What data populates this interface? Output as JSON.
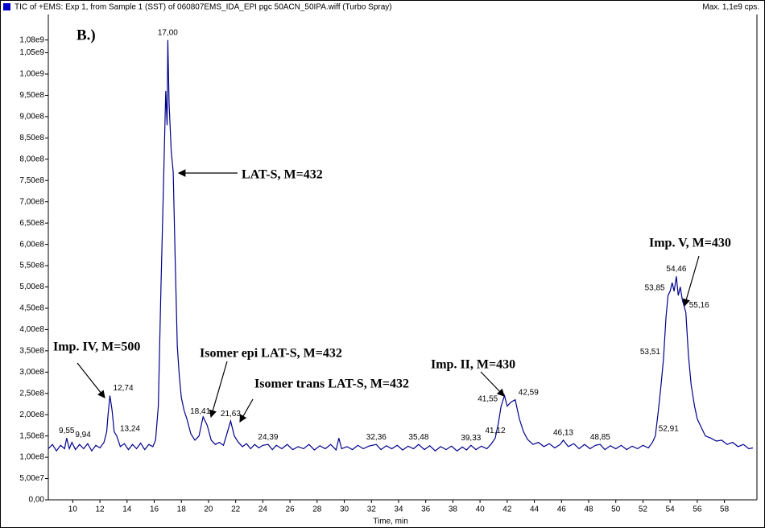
{
  "chart_data": {
    "type": "line",
    "title": "TIC of +EMS: Exp 1, from Sample 1 (SST) of 060807EMS_IDA_EPI pgc 50ACN_50IPA.wiff (Turbo Spray)",
    "max_label": "Max. 1,1e9 cps.",
    "panel_label": "B.)",
    "x_label": "Time, min",
    "xlim": [
      8.2,
      60.1
    ],
    "ylim": [
      0,
      1080000000
    ],
    "xticks": [
      10,
      12,
      14,
      16,
      18,
      20,
      22,
      24,
      26,
      28,
      30,
      32,
      34,
      36,
      38,
      40,
      42,
      44,
      46,
      48,
      50,
      52,
      54,
      56,
      58
    ],
    "yticks": [
      {
        "value": 0,
        "label": "0,00"
      },
      {
        "value": 50000000,
        "label": "5,00e7"
      },
      {
        "value": 100000000,
        "label": "1,00e8"
      },
      {
        "value": 150000000,
        "label": "1,50e8"
      },
      {
        "value": 200000000,
        "label": "2,00e8"
      },
      {
        "value": 250000000,
        "label": "2,50e8"
      },
      {
        "value": 300000000,
        "label": "3,00e8"
      },
      {
        "value": 350000000,
        "label": "3,50e8"
      },
      {
        "value": 400000000,
        "label": "4,00e8"
      },
      {
        "value": 450000000,
        "label": "4,50e8"
      },
      {
        "value": 500000000,
        "label": "5,00e8"
      },
      {
        "value": 550000000,
        "label": "5,50e8"
      },
      {
        "value": 600000000,
        "label": "6,00e8"
      },
      {
        "value": 650000000,
        "label": "6,50e8"
      },
      {
        "value": 700000000,
        "label": "7,00e8"
      },
      {
        "value": 750000000,
        "label": "7,50e8"
      },
      {
        "value": 800000000,
        "label": "8,00e8"
      },
      {
        "value": 850000000,
        "label": "8,50e8"
      },
      {
        "value": 900000000,
        "label": "9,00e8"
      },
      {
        "value": 950000000,
        "label": "9,50e8"
      },
      {
        "value": 1000000000,
        "label": "1,00e9"
      },
      {
        "value": 1050000000,
        "label": "1,05e9"
      },
      {
        "value": 1080000000,
        "label": "1,08e9"
      }
    ],
    "x": [
      8.2,
      8.5,
      8.8,
      9.1,
      9.4,
      9.55,
      9.75,
      9.94,
      10.2,
      10.5,
      10.8,
      11.1,
      11.4,
      11.7,
      12.0,
      12.3,
      12.5,
      12.6,
      12.74,
      12.9,
      13.05,
      13.24,
      13.5,
      13.8,
      14.1,
      14.4,
      14.7,
      15.0,
      15.3,
      15.6,
      15.9,
      16.1,
      16.3,
      16.5,
      16.7,
      16.85,
      16.95,
      17.0,
      17.1,
      17.25,
      17.4,
      17.55,
      17.7,
      17.85,
      18.0,
      18.2,
      18.41,
      18.7,
      19.0,
      19.3,
      19.6,
      19.9,
      20.2,
      20.5,
      20.8,
      21.1,
      21.4,
      21.63,
      21.9,
      22.2,
      22.5,
      22.8,
      23.1,
      23.4,
      23.7,
      24.0,
      24.39,
      24.7,
      25.0,
      25.4,
      25.8,
      26.2,
      26.6,
      27.0,
      27.4,
      27.8,
      28.2,
      28.6,
      29.0,
      29.4,
      29.6,
      29.8,
      30.2,
      30.6,
      31.0,
      31.4,
      31.8,
      32.36,
      32.7,
      33.1,
      33.5,
      33.9,
      34.3,
      34.7,
      35.1,
      35.48,
      35.9,
      36.3,
      36.7,
      37.1,
      37.5,
      37.9,
      38.3,
      38.7,
      39.0,
      39.33,
      39.7,
      40.1,
      40.5,
      40.8,
      41.12,
      41.35,
      41.55,
      41.8,
      42.0,
      42.3,
      42.59,
      42.9,
      43.2,
      43.5,
      43.9,
      44.3,
      44.7,
      45.1,
      45.5,
      45.9,
      46.13,
      46.5,
      46.9,
      47.3,
      47.7,
      48.1,
      48.5,
      48.85,
      49.2,
      49.6,
      50.0,
      50.4,
      50.8,
      51.2,
      51.6,
      52.0,
      52.4,
      52.7,
      52.91,
      53.1,
      53.3,
      53.51,
      53.7,
      53.85,
      54.0,
      54.15,
      54.3,
      54.46,
      54.6,
      54.75,
      54.9,
      55.16,
      55.35,
      55.55,
      55.8,
      56.0,
      56.3,
      56.6,
      57.0,
      57.4,
      57.8,
      58.2,
      58.6,
      59.0,
      59.4,
      59.8,
      60.1
    ],
    "series": [
      {
        "color": "#00008b",
        "values": [
          120000000.0,
          130000000.0,
          115000000.0,
          128000000.0,
          120000000.0,
          145000000.0,
          120000000.0,
          135000000.0,
          118000000.0,
          130000000.0,
          120000000.0,
          132000000.0,
          115000000.0,
          128000000.0,
          122000000.0,
          135000000.0,
          160000000.0,
          200000000.0,
          245000000.0,
          210000000.0,
          160000000.0,
          150000000.0,
          125000000.0,
          132000000.0,
          118000000.0,
          130000000.0,
          120000000.0,
          133000000.0,
          118000000.0,
          130000000.0,
          125000000.0,
          140000000.0,
          220000000.0,
          500000000.0,
          760000000.0,
          960000000.0,
          880000000.0,
          1080000000.0,
          930000000.0,
          820000000.0,
          770000000.0,
          560000000.0,
          360000000.0,
          290000000.0,
          240000000.0,
          210000000.0,
          190000000.0,
          155000000.0,
          140000000.0,
          150000000.0,
          195000000.0,
          175000000.0,
          140000000.0,
          130000000.0,
          135000000.0,
          128000000.0,
          160000000.0,
          185000000.0,
          150000000.0,
          135000000.0,
          125000000.0,
          132000000.0,
          120000000.0,
          130000000.0,
          122000000.0,
          128000000.0,
          130000000.0,
          118000000.0,
          128000000.0,
          120000000.0,
          130000000.0,
          118000000.0,
          125000000.0,
          120000000.0,
          130000000.0,
          117000000.0,
          127000000.0,
          120000000.0,
          130000000.0,
          117000000.0,
          145000000.0,
          120000000.0,
          125000000.0,
          118000000.0,
          128000000.0,
          120000000.0,
          126000000.0,
          130000000.0,
          118000000.0,
          127000000.0,
          120000000.0,
          128000000.0,
          117000000.0,
          126000000.0,
          120000000.0,
          130000000.0,
          118000000.0,
          127000000.0,
          115000000.0,
          125000000.0,
          118000000.0,
          126000000.0,
          115000000.0,
          124000000.0,
          117000000.0,
          128000000.0,
          118000000.0,
          126000000.0,
          120000000.0,
          130000000.0,
          145000000.0,
          180000000.0,
          220000000.0,
          245000000.0,
          220000000.0,
          230000000.0,
          235000000.0,
          190000000.0,
          160000000.0,
          142000000.0,
          130000000.0,
          135000000.0,
          125000000.0,
          132000000.0,
          122000000.0,
          130000000.0,
          140000000.0,
          125000000.0,
          132000000.0,
          120000000.0,
          130000000.0,
          120000000.0,
          128000000.0,
          130000000.0,
          118000000.0,
          127000000.0,
          120000000.0,
          128000000.0,
          118000000.0,
          126000000.0,
          120000000.0,
          128000000.0,
          122000000.0,
          135000000.0,
          150000000.0,
          200000000.0,
          260000000.0,
          330000000.0,
          430000000.0,
          480000000.0,
          490000000.0,
          510000000.0,
          490000000.0,
          525000000.0,
          480000000.0,
          500000000.0,
          470000000.0,
          440000000.0,
          340000000.0,
          270000000.0,
          220000000.0,
          190000000.0,
          170000000.0,
          150000000.0,
          145000000.0,
          138000000.0,
          140000000.0,
          130000000.0,
          135000000.0,
          125000000.0,
          130000000.0,
          120000000.0,
          122000000.0
        ]
      }
    ],
    "peak_labels": [
      {
        "x": 9.55,
        "y": 145000000.0,
        "label": "9,55"
      },
      {
        "x": 9.94,
        "y": 135000000.0,
        "label": "9,94"
      },
      {
        "x": 12.74,
        "y": 245000000.0,
        "label": "12,74"
      },
      {
        "x": 13.24,
        "y": 150000000.0,
        "label": "13,24"
      },
      {
        "x": 17.0,
        "y": 1080000000.0,
        "label": "17,00"
      },
      {
        "x": 18.41,
        "y": 190000000.0,
        "label": "18,41"
      },
      {
        "x": 21.63,
        "y": 185000000.0,
        "label": "21,63"
      },
      {
        "x": 24.39,
        "y": 130000000.0,
        "label": "24,39"
      },
      {
        "x": 32.36,
        "y": 130000000.0,
        "label": "32,36"
      },
      {
        "x": 35.48,
        "y": 130000000.0,
        "label": "35,48"
      },
      {
        "x": 39.33,
        "y": 128000000.0,
        "label": "39,33"
      },
      {
        "x": 41.12,
        "y": 145000000.0,
        "label": "41,12"
      },
      {
        "x": 41.55,
        "y": 220000000.0,
        "label": "41,55"
      },
      {
        "x": 42.59,
        "y": 235000000.0,
        "label": "42,59"
      },
      {
        "x": 46.13,
        "y": 140000000.0,
        "label": "46,13"
      },
      {
        "x": 48.85,
        "y": 130000000.0,
        "label": "48,85"
      },
      {
        "x": 52.91,
        "y": 150000000.0,
        "label": "52,91"
      },
      {
        "x": 53.51,
        "y": 330000000.0,
        "label": "53,51"
      },
      {
        "x": 53.85,
        "y": 480000000.0,
        "label": "53,85"
      },
      {
        "x": 54.46,
        "y": 525000000.0,
        "label": "54,46"
      },
      {
        "x": 55.16,
        "y": 440000000.0,
        "label": "55,16"
      }
    ],
    "annotations": [
      "LAT-S, M=432",
      "Imp. IV, M=500",
      "Isomer epi LAT-S, M=432",
      "Isomer trans LAT-S, M=432",
      "Imp. II, M=430",
      "Imp. V, M=430"
    ]
  }
}
